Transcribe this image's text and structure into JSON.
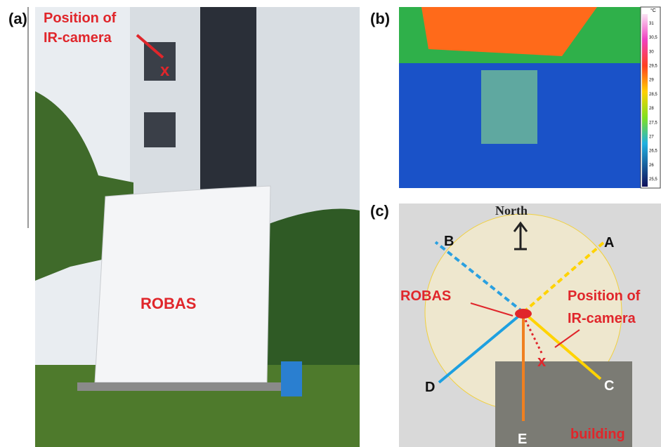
{
  "panel_a": {
    "label": "(a)",
    "camera_note": [
      "Position of",
      "IR-camera"
    ],
    "object_label": "ROBAS"
  },
  "panel_b": {
    "label": "(b)",
    "colorbar_unit": "°C",
    "colorbar_ticks": [
      "31",
      "30,5",
      "30",
      "29,5",
      "29",
      "28,5",
      "28",
      "27,5",
      "27",
      "26,5",
      "26",
      "25,5"
    ]
  },
  "panel_c": {
    "label": "(c)",
    "north": "North",
    "points": [
      "A",
      "B",
      "C",
      "D",
      "E"
    ],
    "object_label": "ROBAS",
    "camera_note": [
      "Position of",
      "IR-camera"
    ],
    "building": "building"
  }
}
